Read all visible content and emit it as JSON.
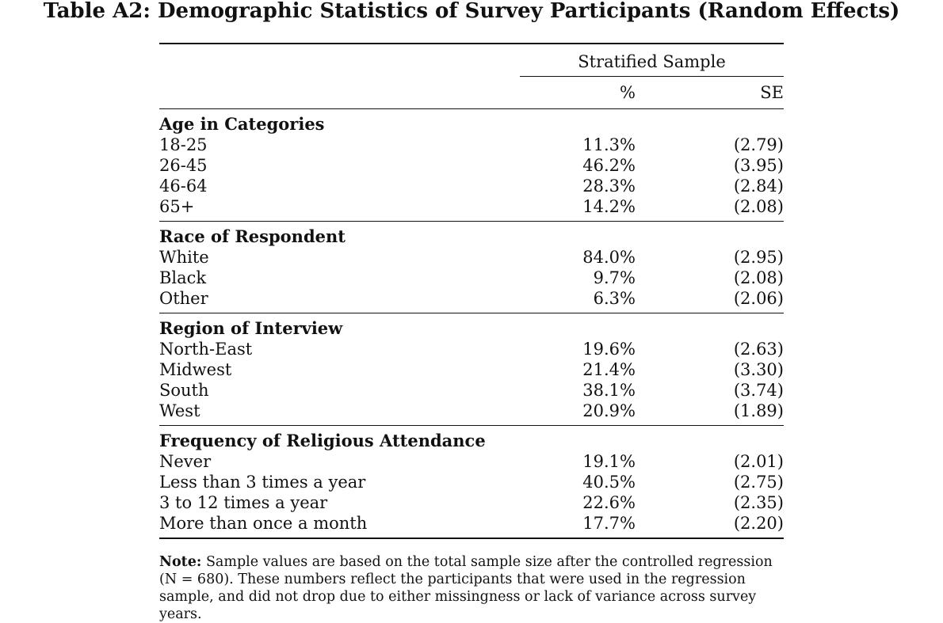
{
  "title": "Table A2: Demographic Statistics of Survey Participants (Random Effects)",
  "header": {
    "spanner": "Stratified Sample",
    "col_pct": "%",
    "col_se": "SE"
  },
  "sections": [
    {
      "heading": "Age in Categories",
      "rows": [
        {
          "label": "18-25",
          "pct": "11.3%",
          "se": "(2.79)"
        },
        {
          "label": "26-45",
          "pct": "46.2%",
          "se": "(3.95)"
        },
        {
          "label": "46-64",
          "pct": "28.3%",
          "se": "(2.84)"
        },
        {
          "label": "65+",
          "pct": "14.2%",
          "se": "(2.08)"
        }
      ]
    },
    {
      "heading": "Race of Respondent",
      "rows": [
        {
          "label": "White",
          "pct": "84.0%",
          "se": "(2.95)"
        },
        {
          "label": "Black",
          "pct": "9.7%",
          "se": "(2.08)"
        },
        {
          "label": "Other",
          "pct": "6.3%",
          "se": "(2.06)"
        }
      ]
    },
    {
      "heading": "Region of Interview",
      "rows": [
        {
          "label": "North-East",
          "pct": "19.6%",
          "se": "(2.63)"
        },
        {
          "label": "Midwest",
          "pct": "21.4%",
          "se": "(3.30)"
        },
        {
          "label": "South",
          "pct": "38.1%",
          "se": "(3.74)"
        },
        {
          "label": "West",
          "pct": "20.9%",
          "se": "(1.89)"
        }
      ]
    },
    {
      "heading": "Frequency of Religious Attendance",
      "rows": [
        {
          "label": "Never",
          "pct": "19.1%",
          "se": "(2.01)"
        },
        {
          "label": "Less than 3 times a year",
          "pct": "40.5%",
          "se": "(2.75)"
        },
        {
          "label": "3 to 12 times a year",
          "pct": "22.6%",
          "se": "(2.35)"
        },
        {
          "label": "More than once a month",
          "pct": "17.7%",
          "se": "(2.20)"
        }
      ]
    }
  ],
  "note": {
    "label": "Note:",
    "text": "Sample values are based on the total sample size after the controlled regression (N = 680). These numbers reflect the participants that were used in the regression sample, and did not drop due to either missingness or lack of variance across survey years."
  }
}
